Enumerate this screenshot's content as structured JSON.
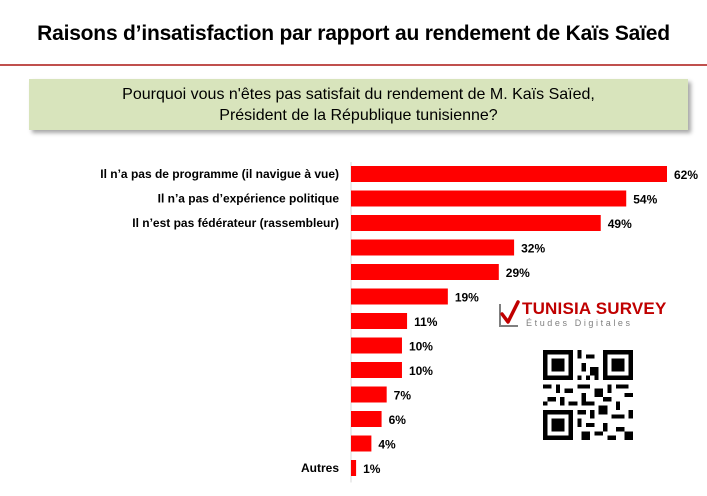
{
  "title": "Raisons d’insatisfaction par rapport au rendement  de Kaïs Saïed",
  "question": {
    "line1": "Pourquoi vous n'êtes pas satisfait du rendement de M. Kaïs Saïed,",
    "line2": "Président de la République tunisienne?"
  },
  "logo": {
    "name": "TUNISIA SURVEY",
    "tagline": "Études Digitales",
    "icon": "checkmark-logo-icon"
  },
  "qr_icon": "qr-code-icon",
  "colors": {
    "bar": "#ff0000",
    "title_rule": "#c0504d",
    "question_bg": "#d8e4bc"
  },
  "chart_data": {
    "type": "bar",
    "orientation": "horizontal",
    "categories": [
      "Il n’a pas de programme (il navigue à vue)",
      "Il n’a pas d’expérience politique",
      "Il n’est pas fédérateur (rassembleur)",
      "",
      "",
      "",
      "",
      "",
      "",
      "",
      "",
      "",
      "Autres"
    ],
    "values": [
      62,
      54,
      49,
      32,
      29,
      19,
      11,
      10,
      10,
      7,
      6,
      4,
      1
    ],
    "value_labels": [
      "62%",
      "54%",
      "49%",
      "32%",
      "29%",
      "19%",
      "11%",
      "10%",
      "10%",
      "7%",
      "6%",
      "4%",
      "1%"
    ],
    "unit": "%",
    "xlim": [
      0,
      62
    ],
    "grid": false,
    "legend": "none"
  }
}
